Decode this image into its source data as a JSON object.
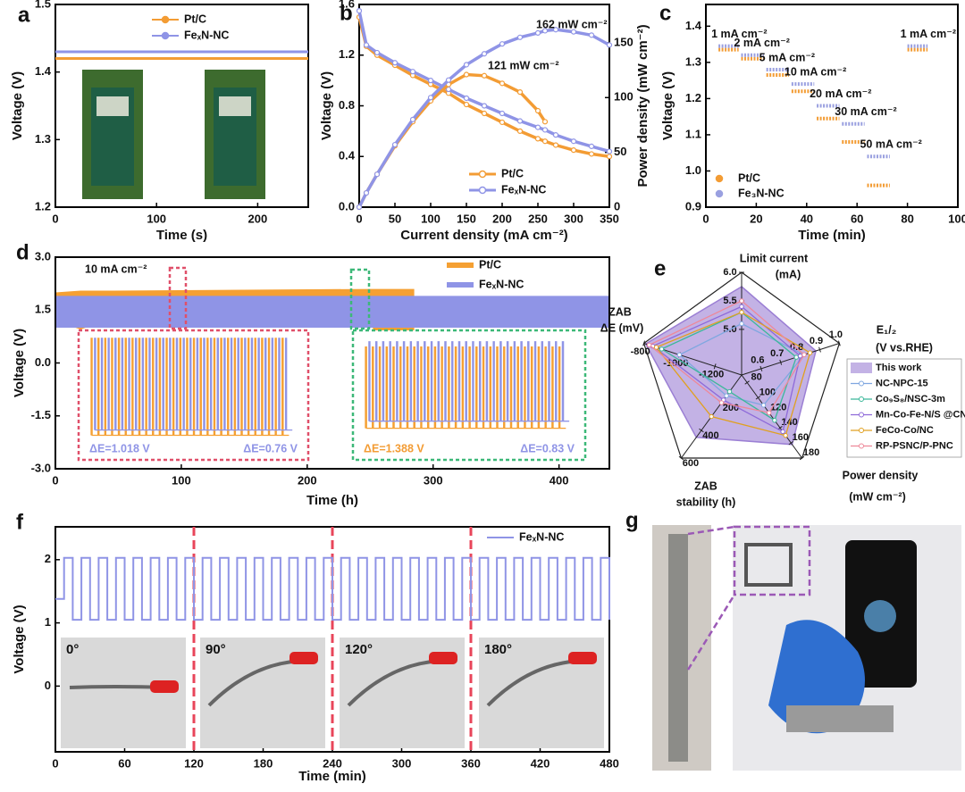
{
  "chart_data": [
    {
      "panel": "a",
      "type": "line",
      "xlabel": "Time (s)",
      "ylabel": "Voltage (V)",
      "x": [
        0,
        250
      ],
      "xlim": [
        0,
        250
      ],
      "xticks": [
        0,
        100,
        200
      ],
      "ylim": [
        1.2,
        1.5
      ],
      "yticks": [
        1.2,
        1.3,
        1.4,
        1.5
      ],
      "series": [
        {
          "name": "Pt/C",
          "color": "#f39c34",
          "values": [
            1.42,
            1.42
          ]
        },
        {
          "name": "FeₓN-NC",
          "color": "#8f94e6",
          "values": [
            1.43,
            1.43
          ]
        }
      ]
    },
    {
      "panel": "b",
      "type": "line",
      "xlabel": "Current density (mA cm⁻²)",
      "ylabel": "Voltage (V)",
      "y2label": "Power density (mW cm⁻²)",
      "x": [
        0,
        10,
        25,
        50,
        75,
        100,
        125,
        150,
        175,
        200,
        225,
        250,
        260,
        275,
        300,
        325,
        350
      ],
      "xlim": [
        0,
        350
      ],
      "xticks": [
        0,
        50,
        100,
        150,
        200,
        250,
        300,
        350
      ],
      "ylim": [
        0,
        1.6
      ],
      "yticks": [
        {
          "value": 0,
          "label": "0.0"
        },
        0.4,
        0.8,
        1.2,
        1.6
      ],
      "y2lim": [
        0,
        185
      ],
      "y2ticks": [
        0,
        50,
        100,
        150
      ],
      "annotations": [
        "162 mW cm⁻²",
        "121 mW cm⁻²"
      ],
      "series": [
        {
          "name": "Pt/C",
          "color": "#f39c34",
          "values": [
            1.5,
            1.27,
            1.2,
            1.12,
            1.04,
            0.97,
            0.9,
            0.81,
            0.74,
            0.67,
            0.6,
            0.54,
            0.52,
            0.49,
            0.45,
            0.42,
            0.4
          ]
        },
        {
          "name": "FeₓN-NC",
          "color": "#8f94e6",
          "values": [
            1.55,
            1.28,
            1.22,
            1.14,
            1.07,
            1.0,
            0.93,
            0.86,
            0.8,
            0.74,
            0.68,
            0.63,
            0.61,
            0.57,
            0.52,
            0.48,
            0.44
          ]
        },
        {
          "color": "#f39c34",
          "axis": "y2",
          "values": [
            0,
            13,
            30,
            56,
            78,
            97,
            112,
            121,
            120,
            113,
            105,
            88,
            78,
            null,
            null,
            null,
            null
          ]
        },
        {
          "color": "#8f94e6",
          "axis": "y2",
          "values": [
            0,
            13,
            30,
            57,
            80,
            100,
            116,
            130,
            140,
            149,
            155,
            159,
            161,
            162,
            160,
            157,
            148
          ]
        }
      ]
    },
    {
      "panel": "c",
      "type": "step",
      "xlabel": "Time (min)",
      "ylabel": "Voltage (V)",
      "x_start": [
        5,
        14,
        24,
        34,
        44,
        54,
        64,
        80
      ],
      "x_end": [
        13,
        23,
        33,
        43,
        53,
        63,
        73,
        88
      ],
      "xlim": [
        0,
        100
      ],
      "xticks": [
        0,
        20,
        40,
        60,
        80,
        100
      ],
      "ylim": [
        0.9,
        1.46
      ],
      "yticks": [
        0.9,
        {
          "value": 1,
          "label": "1.0"
        },
        1.1,
        1.2,
        1.3,
        1.4
      ],
      "labels": [
        "1 mA cm⁻²",
        "2 mA cm⁻²",
        "5 mA cm⁻²",
        "10 mA cm⁻²",
        "20 mA cm⁻²",
        "30 mA cm⁻²",
        "50 mA cm⁻²",
        "1 mA cm⁻²"
      ],
      "series": [
        {
          "name": "Pt/C",
          "color": "#f39c34",
          "values": [
            1.335,
            1.31,
            1.265,
            1.22,
            1.145,
            1.08,
            0.96,
            1.335
          ]
        },
        {
          "name": "Fe₃N-NC",
          "color": "#9aa0e0",
          "values": [
            1.345,
            1.32,
            1.28,
            1.24,
            1.18,
            1.13,
            1.04,
            1.345
          ]
        }
      ]
    },
    {
      "panel": "d",
      "type": "band",
      "xlabel": "Time (h)",
      "ylabel": "Voltage (V)",
      "xlim": [
        0,
        440
      ],
      "xticks": [
        0,
        100,
        200,
        300,
        400
      ],
      "ylim": [
        -3,
        3
      ],
      "yticks": [
        {
          "value": -3,
          "label": "-3.0"
        },
        -1.5,
        {
          "value": 0,
          "label": "0.0"
        },
        1.5,
        {
          "value": 3,
          "label": "3.0"
        }
      ],
      "annotation": "10 mA cm⁻²",
      "series": [
        {
          "name": "Pt/C",
          "color": "#f5a033",
          "x": [
            0,
            20,
            40,
            250,
            260,
            285
          ],
          "upper": [
            2.0,
            2.05,
            2.05,
            2.1,
            2.1,
            2.1
          ],
          "lower": [
            1.2,
            0.95,
            1.2,
            1.2,
            0.2,
            0.2
          ]
        },
        {
          "name": "FeₓN-NC",
          "color": "#8f94e6",
          "x": [
            0,
            440
          ],
          "upper": [
            1.9,
            1.9
          ],
          "lower": [
            1.0,
            1.0
          ]
        }
      ],
      "insets": [
        {
          "cycles": 30,
          "waves": [
            {
              "color": "#f5a033",
              "high": 0.7,
              "low": -2.05
            },
            {
              "color": "#8f94e6",
              "high": 0.7,
              "low": -1.9
            }
          ],
          "labels": [
            {
              "text": "ΔE=1.018 V",
              "color": "#8f94e6"
            },
            {
              "text": "ΔE=0.76 V",
              "color": "#8f94e6"
            }
          ]
        },
        {
          "cycles": 30,
          "waves": [
            {
              "color": "#f5a033",
              "high": 0.45,
              "low": -1.85
            },
            {
              "color": "#8f94e6",
              "high": 0.6,
              "low": -1.65
            }
          ],
          "labels": [
            {
              "text": "ΔE=1.388 V",
              "color": "#f39c34"
            },
            {
              "text": "ΔE=0.83 V",
              "color": "#8f94e6"
            }
          ]
        }
      ]
    },
    {
      "panel": "e",
      "type": "radar",
      "axes": [
        {
          "label": [
            "Limit current",
            "(mA)"
          ],
          "range": [
            4.2,
            6.0
          ],
          "ticks": [
            {
              "value": 5,
              "label": "5.0"
            },
            5.5,
            {
              "value": 6,
              "label": "6.0"
            }
          ]
        },
        {
          "label": [
            "E₁/₂",
            "(V vs.RHE)"
          ],
          "range": [
            0.5,
            1.0
          ],
          "ticks": [
            0.6,
            0.7,
            0.8,
            0.9,
            {
              "value": 1,
              "label": "1.0"
            }
          ]
        },
        {
          "label": [
            "Power density",
            "(mW cm⁻²)"
          ],
          "range": [
            70,
            180
          ],
          "ticks": [
            80,
            100,
            120,
            140,
            160,
            180
          ]
        },
        {
          "label": [
            "ZAB",
            "stability (h)"
          ],
          "range": [
            0,
            600
          ],
          "ticks": [
            200,
            400,
            600
          ]
        },
        {
          "label": [
            "ZAB",
            "ΔE (mV)"
          ],
          "range": [
            -1350,
            -800
          ],
          "ticks": [
            -1200,
            -1000,
            -800
          ]
        }
      ],
      "series": [
        {
          "name": "This work",
          "color": "#9b7fd4",
          "fill": true,
          "values": [
            5.75,
            0.88,
            162,
            450,
            -810
          ]
        },
        {
          "name": "NC-NPC-15",
          "color": "#7fa7e0",
          "values": [
            5.1,
            0.82,
            110,
            150,
            -1000
          ]
        },
        {
          "name": "Co₉S₈/NSC-3m",
          "color": "#3cb89a",
          "values": [
            5.3,
            0.78,
            130,
            120,
            -900
          ]
        },
        {
          "name": "Mn-Co-Fe-N/S @CNT",
          "color": "#8e6ad9",
          "values": [
            5.4,
            0.8,
            145,
            180,
            -850
          ]
        },
        {
          "name": "FeCo-Co/NC",
          "color": "#e0a020",
          "values": [
            5.3,
            0.85,
            150,
            300,
            -870
          ]
        },
        {
          "name": "RP-PSNC/P-PNC",
          "color": "#ee8899",
          "values": [
            5.5,
            0.82,
            120,
            200,
            -830
          ]
        }
      ]
    },
    {
      "panel": "f",
      "type": "line",
      "step": true,
      "xlabel": "Time (min)",
      "ylabel": "Voltage (V)",
      "xlim": [
        0,
        480
      ],
      "xticks": [
        0,
        60,
        120,
        180,
        240,
        300,
        360,
        420,
        480
      ],
      "ylim": [
        -1.04,
        2.52
      ],
      "yticks": [
        0,
        1,
        2
      ],
      "dividers": [
        120,
        240,
        360
      ],
      "insets": [
        "0°",
        "90°",
        "120°",
        "180°"
      ],
      "x": [
        0,
        7.5,
        15,
        22.5,
        30,
        37.5,
        45,
        52.5,
        60,
        67.5,
        75,
        82.5,
        90,
        97.5,
        105,
        112.5,
        120,
        127.5,
        135,
        142.5,
        150,
        157.5,
        165,
        172.5,
        180,
        187.5,
        195,
        202.5,
        210,
        217.5,
        225,
        232.5,
        240,
        247.5,
        255,
        262.5,
        270,
        277.5,
        285,
        292.5,
        300,
        307.5,
        315,
        322.5,
        330,
        337.5,
        345,
        352.5,
        360,
        367.5,
        375,
        382.5,
        390,
        397.5,
        405,
        412.5,
        420,
        427.5,
        435,
        442.5,
        450,
        457.5,
        465,
        472.5,
        480
      ],
      "series": [
        {
          "name": "FeₓN-NC",
          "color": "#8f94e6",
          "values": [
            1.38,
            2.03,
            1.05,
            2.03,
            1.05,
            2.03,
            1.05,
            2.03,
            1.05,
            2.03,
            1.05,
            2.03,
            1.05,
            2.03,
            1.05,
            2.03,
            1.05,
            2.03,
            1.05,
            2.03,
            1.05,
            2.03,
            1.05,
            2.03,
            1.05,
            2.03,
            1.05,
            2.03,
            1.05,
            2.03,
            1.05,
            2.03,
            1.05,
            2.03,
            1.05,
            2.03,
            1.05,
            2.03,
            1.05,
            2.03,
            1.05,
            2.03,
            1.05,
            2.03,
            1.05,
            2.03,
            1.05,
            2.03,
            1.05,
            2.03,
            1.05,
            2.03,
            1.05,
            2.03,
            1.05,
            2.03,
            1.05,
            2.03,
            1.05,
            2.03,
            1.05,
            2.03,
            1.05,
            2.03,
            1.05
          ]
        }
      ]
    }
  ],
  "figure_g": {
    "panel": "g"
  }
}
